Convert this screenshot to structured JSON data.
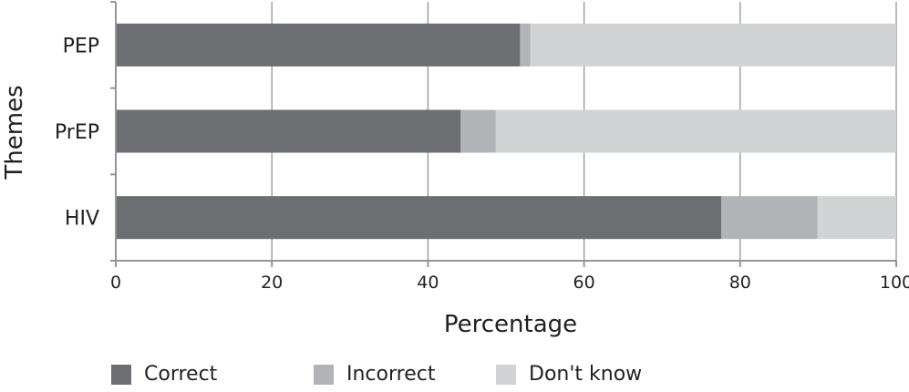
{
  "chart_data": {
    "type": "bar",
    "orientation": "horizontal",
    "stacked": true,
    "title": "",
    "xlabel": "Percentage",
    "ylabel": "Themes",
    "xlim": [
      0,
      100
    ],
    "xticks": [
      0,
      20,
      40,
      60,
      80,
      100
    ],
    "xtick_labels": [
      "0",
      "20",
      "40",
      "60",
      "80",
      "100"
    ],
    "categories": [
      "PEP",
      "PrEP",
      "HIV"
    ],
    "series": [
      {
        "name": "Correct",
        "values": [
          51.8,
          44.2,
          77.6
        ],
        "color": "#6d6e71"
      },
      {
        "name": "Incorrect",
        "values": [
          1.3,
          4.5,
          12.3
        ],
        "color": "#b1b3b6"
      },
      {
        "name": "Don't know",
        "values": [
          46.9,
          51.3,
          10.1
        ],
        "color": "#d1d3d4"
      }
    ],
    "grid": true,
    "legend_position": "bottom"
  }
}
